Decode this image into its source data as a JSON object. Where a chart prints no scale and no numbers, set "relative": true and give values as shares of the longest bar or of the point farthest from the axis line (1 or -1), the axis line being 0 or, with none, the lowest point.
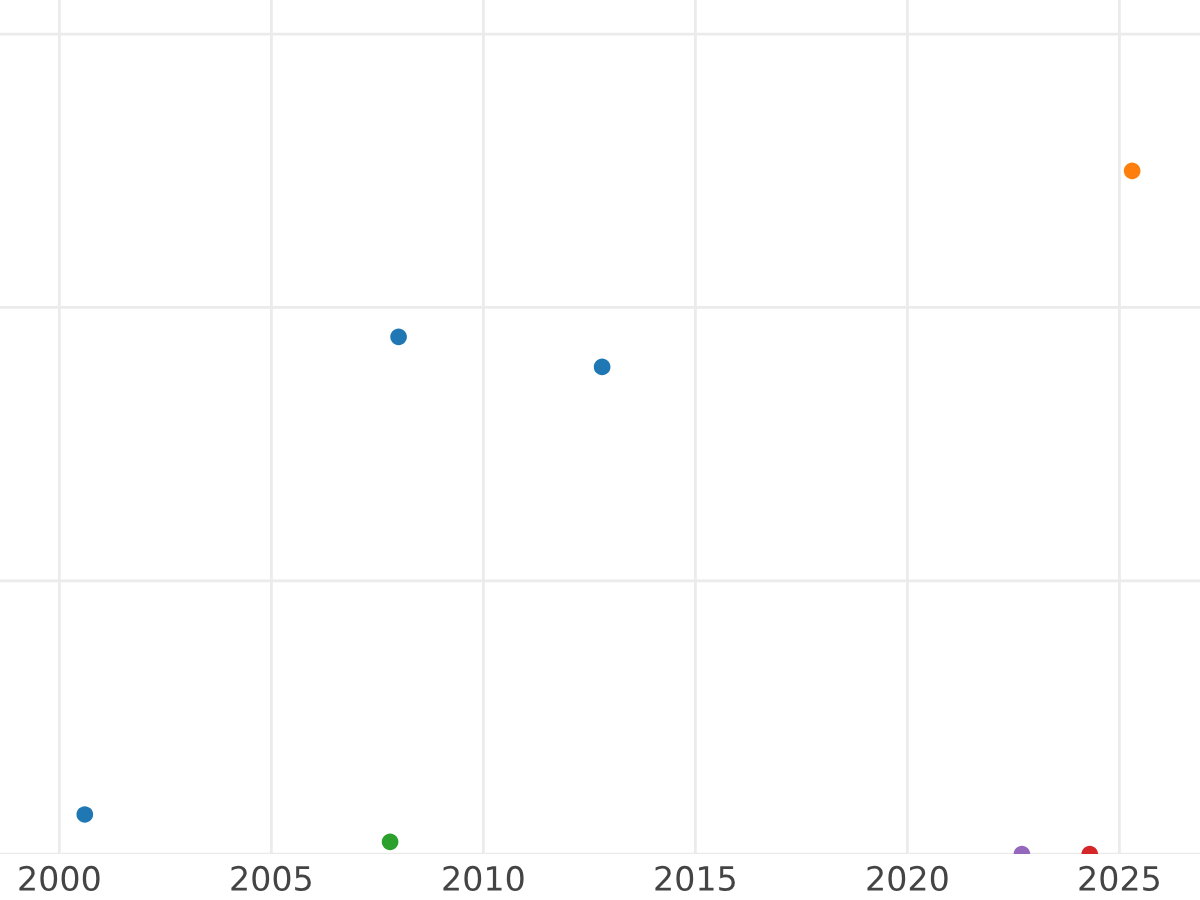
{
  "chart_data": {
    "type": "scatter",
    "relative": true,
    "x": [
      2000.6,
      2007.8,
      2008.0,
      2012.8,
      2022.7,
      2024.3,
      2025.3
    ],
    "values": [
      0.058,
      0.018,
      0.757,
      0.713,
      0,
      0,
      1
    ],
    "colors": [
      "#1f77b4",
      "#2ca02c",
      "#1f77b4",
      "#1f77b4",
      "#9467bd",
      "#d62728",
      "#ff7f0e"
    ],
    "xlim": [
      1998.6,
      2026.9
    ],
    "xticks": [
      2000,
      2005,
      2010,
      2015,
      2020,
      2025
    ],
    "grid": true,
    "tick_labels": "x",
    "marker": "circle"
  }
}
